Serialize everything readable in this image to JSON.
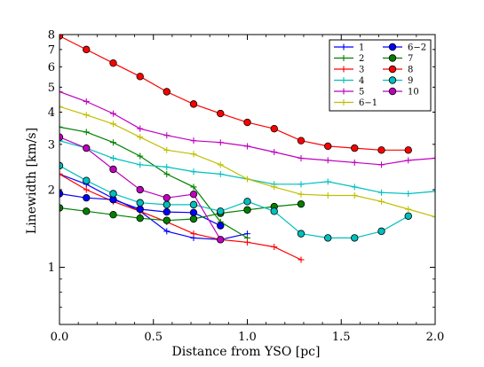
{
  "chart_data": {
    "type": "line",
    "title": "",
    "xlabel": "Distance from YSO [pc]",
    "ylabel": "Linewidth [km/s]",
    "xlim": [
      0.0,
      2.0
    ],
    "ylim": [
      0.6,
      8
    ],
    "y_scale": "log",
    "grid": false,
    "legend_position": "top-right",
    "x_ticks": [
      0.0,
      0.5,
      1.0,
      1.5,
      2.0
    ],
    "x_tick_labels": [
      "0.0",
      "0.5",
      "1.0",
      "1.5",
      "2.0"
    ],
    "y_ticks": [
      1,
      2,
      3,
      4,
      5,
      6,
      7,
      8
    ],
    "y_tick_labels": [
      "1",
      "2",
      "3",
      "4",
      "5",
      "6",
      "7",
      "8"
    ],
    "series": [
      {
        "name": "1",
        "color": "#0000ff",
        "marker": "plus",
        "x": [
          0.0,
          0.143,
          0.286,
          0.429,
          0.571,
          0.714,
          0.857,
          1.0
        ],
        "y": [
          2.3,
          2.1,
          1.85,
          1.65,
          1.38,
          1.3,
          1.28,
          1.35
        ]
      },
      {
        "name": "2",
        "color": "#008000",
        "marker": "plus",
        "x": [
          0.0,
          0.143,
          0.286,
          0.429,
          0.571,
          0.714,
          0.857,
          1.0
        ],
        "y": [
          3.5,
          3.35,
          3.05,
          2.7,
          2.3,
          2.05,
          1.5,
          1.3
        ]
      },
      {
        "name": "3",
        "color": "#ff0000",
        "marker": "plus",
        "x": [
          0.0,
          0.143,
          0.286,
          0.429,
          0.571,
          0.714,
          0.857,
          1.0,
          1.143,
          1.286
        ],
        "y": [
          2.3,
          2.0,
          1.8,
          1.65,
          1.5,
          1.35,
          1.28,
          1.25,
          1.2,
          1.07
        ]
      },
      {
        "name": "4",
        "color": "#00bfbf",
        "marker": "plus",
        "x": [
          0.0,
          0.143,
          0.286,
          0.429,
          0.571,
          0.714,
          0.857,
          1.0,
          1.143,
          1.286,
          1.429,
          1.571,
          1.714,
          1.857,
          2.0
        ],
        "y": [
          3.1,
          2.9,
          2.65,
          2.5,
          2.45,
          2.35,
          2.3,
          2.2,
          2.1,
          2.1,
          2.15,
          2.05,
          1.95,
          1.93,
          1.97
        ]
      },
      {
        "name": "5",
        "color": "#bf00bf",
        "marker": "plus",
        "x": [
          0.0,
          0.143,
          0.286,
          0.429,
          0.571,
          0.714,
          0.857,
          1.0,
          1.143,
          1.286,
          1.429,
          1.571,
          1.714,
          1.857,
          2.0
        ],
        "y": [
          4.8,
          4.4,
          3.95,
          3.45,
          3.25,
          3.1,
          3.05,
          2.95,
          2.8,
          2.65,
          2.6,
          2.55,
          2.5,
          2.6,
          2.65
        ]
      },
      {
        "name": "6−1",
        "color": "#bfbf00",
        "marker": "plus",
        "x": [
          0.0,
          0.143,
          0.286,
          0.429,
          0.571,
          0.714,
          0.857,
          1.0,
          1.143,
          1.286,
          1.429,
          1.571,
          1.714,
          1.857,
          2.0
        ],
        "y": [
          4.2,
          3.9,
          3.6,
          3.2,
          2.85,
          2.75,
          2.5,
          2.2,
          2.05,
          1.92,
          1.9,
          1.9,
          1.8,
          1.68,
          1.57
        ]
      },
      {
        "name": "6−2",
        "color": "#0000ff",
        "marker": "circle",
        "x": [
          0.0,
          0.143,
          0.286,
          0.429,
          0.571,
          0.714,
          0.857
        ],
        "y": [
          1.93,
          1.86,
          1.83,
          1.68,
          1.64,
          1.63,
          1.45
        ]
      },
      {
        "name": "7",
        "color": "#008000",
        "marker": "circle",
        "x": [
          0.0,
          0.143,
          0.286,
          0.429,
          0.571,
          0.714,
          0.857,
          1.0,
          1.143,
          1.286
        ],
        "y": [
          1.7,
          1.65,
          1.6,
          1.55,
          1.52,
          1.54,
          1.62,
          1.67,
          1.72,
          1.76
        ]
      },
      {
        "name": "8",
        "color": "#ff0000",
        "marker": "circle",
        "x": [
          0.0,
          0.143,
          0.286,
          0.429,
          0.571,
          0.714,
          0.857,
          1.0,
          1.143,
          1.286,
          1.429,
          1.571,
          1.714,
          1.857
        ],
        "y": [
          7.9,
          7.0,
          6.2,
          5.5,
          4.8,
          4.3,
          3.95,
          3.65,
          3.45,
          3.1,
          2.95,
          2.9,
          2.85,
          2.85
        ]
      },
      {
        "name": "9",
        "color": "#00bfbf",
        "marker": "circle",
        "x": [
          0.0,
          0.143,
          0.286,
          0.429,
          0.571,
          0.714,
          0.857,
          1.0,
          1.143,
          1.286,
          1.429,
          1.571,
          1.714,
          1.857
        ],
        "y": [
          2.48,
          2.17,
          1.93,
          1.78,
          1.75,
          1.75,
          1.65,
          1.8,
          1.65,
          1.35,
          1.3,
          1.3,
          1.38,
          1.58
        ]
      },
      {
        "name": "10",
        "color": "#bf00bf",
        "marker": "circle",
        "x": [
          0.0,
          0.143,
          0.286,
          0.429,
          0.571,
          0.714,
          0.857
        ],
        "y": [
          3.2,
          2.9,
          2.4,
          2.0,
          1.86,
          1.92,
          1.28
        ]
      }
    ]
  }
}
